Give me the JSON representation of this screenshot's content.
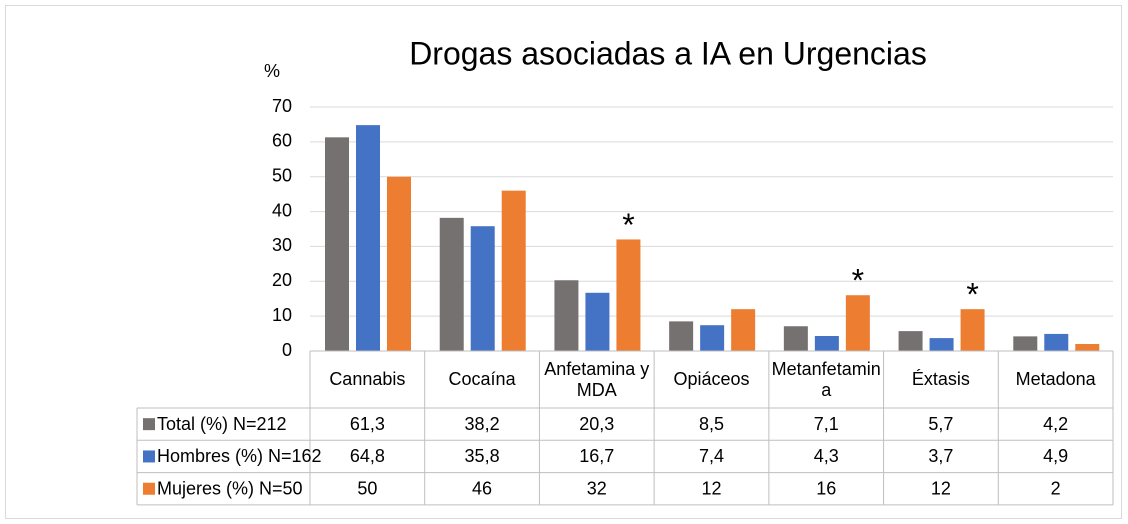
{
  "chart_data": {
    "type": "bar",
    "title": "Drogas asociadas a IA en Urgencias",
    "y_label": "%",
    "categories": [
      "Cannabis",
      "Cocaína",
      "Anfetamina y MDA",
      "Opiáceos",
      "Metanfetamina",
      "Éxtasis",
      "Metadona"
    ],
    "series": [
      {
        "name": "Total (%) N=212",
        "color": "#767171",
        "values": [
          61.3,
          38.2,
          20.3,
          8.5,
          7.1,
          5.7,
          4.2
        ],
        "value_labels": [
          "61,3",
          "38,2",
          "20,3",
          "8,5",
          "7,1",
          "5,7",
          "4,2"
        ]
      },
      {
        "name": "Hombres (%)  N=162",
        "color": "#4472c4",
        "values": [
          64.8,
          35.8,
          16.7,
          7.4,
          4.3,
          3.7,
          4.9
        ],
        "value_labels": [
          "64,8",
          "35,8",
          "16,7",
          "7,4",
          "4,3",
          "3,7",
          "4,9"
        ]
      },
      {
        "name": "Mujeres (%)  N=50",
        "color": "#ed7d31",
        "values": [
          50,
          46,
          32,
          12,
          16,
          12,
          2
        ],
        "value_labels": [
          "50",
          "46",
          "32",
          "12",
          "16",
          "12",
          "2"
        ]
      }
    ],
    "annotations": [
      {
        "text": "*",
        "series": 2,
        "category": 2
      },
      {
        "text": "*",
        "series": 2,
        "category": 4
      },
      {
        "text": "*",
        "series": 2,
        "category": 5
      }
    ],
    "ylim": [
      0,
      70
    ],
    "yticks": [
      0,
      10,
      20,
      30,
      40,
      50,
      60,
      70
    ],
    "grid": true
  }
}
